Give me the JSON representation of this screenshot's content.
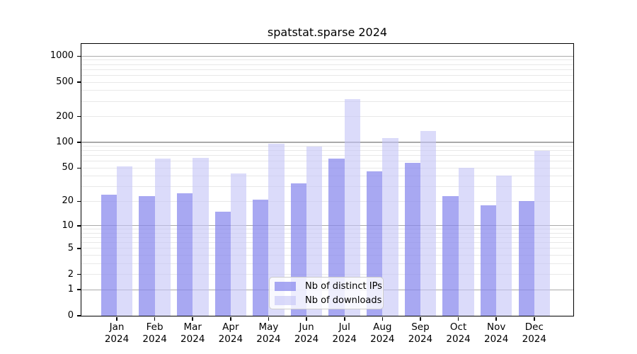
{
  "title": "spatstat.sparse 2024",
  "chart_data": {
    "type": "bar",
    "title": "spatstat.sparse 2024",
    "x_year": "2024",
    "categories": [
      "Jan",
      "Feb",
      "Mar",
      "Apr",
      "May",
      "Jun",
      "Jul",
      "Aug",
      "Sep",
      "Oct",
      "Nov",
      "Dec"
    ],
    "series": [
      {
        "name": "Nb of distinct IPs",
        "color": "#a8a8f2",
        "fill": "rgba(134,134,237,0.72)",
        "values": [
          24,
          23,
          25,
          15,
          21,
          33,
          64,
          46,
          58,
          23,
          18,
          20
        ]
      },
      {
        "name": "Nb of downloads",
        "color": "#dbdbfa",
        "fill": "rgba(195,195,247,0.6)",
        "values": [
          52,
          65,
          66,
          43,
          96,
          90,
          320,
          113,
          135,
          50,
          41,
          80
        ]
      }
    ],
    "y_scale": "log1p",
    "y_ticks": [
      0,
      1,
      2,
      5,
      10,
      20,
      50,
      100,
      200,
      500,
      1000
    ],
    "ylim": [
      0,
      1378
    ],
    "grid": true,
    "legend_position": "lower-center-inside"
  },
  "colors": {
    "grid_major": "#aaaaaa",
    "grid_minor": "#e8e8e8",
    "axis": "#000000",
    "background": "#ffffff"
  }
}
